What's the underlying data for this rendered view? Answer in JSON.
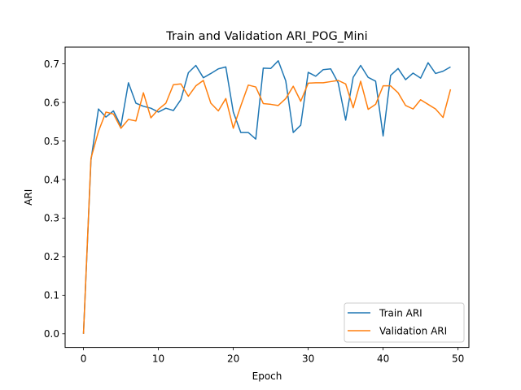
{
  "chart_data": {
    "type": "line",
    "title": "Train and Validation ARI_POG_Mini",
    "xlabel": "Epoch",
    "ylabel": "ARI",
    "xlim": [
      -2.45,
      51.45
    ],
    "ylim": [
      -0.0354,
      0.7434
    ],
    "xticks": [
      0,
      10,
      20,
      30,
      40,
      50
    ],
    "yticks": [
      0.0,
      0.1,
      0.2,
      0.3,
      0.4,
      0.5,
      0.6,
      0.7
    ],
    "xtick_labels": [
      "0",
      "10",
      "20",
      "30",
      "40",
      "50"
    ],
    "ytick_labels": [
      "0.0",
      "0.1",
      "0.2",
      "0.3",
      "0.4",
      "0.5",
      "0.6",
      "0.7"
    ],
    "grid": false,
    "legend_position": "lower-right",
    "x": [
      0,
      1,
      2,
      3,
      4,
      5,
      6,
      7,
      8,
      9,
      10,
      11,
      12,
      13,
      14,
      15,
      16,
      17,
      18,
      19,
      20,
      21,
      22,
      23,
      24,
      25,
      26,
      27,
      28,
      29,
      30,
      31,
      32,
      33,
      34,
      35,
      36,
      37,
      38,
      39,
      40,
      41,
      42,
      43,
      44,
      45,
      46,
      47,
      48,
      49
    ],
    "series": [
      {
        "name": "Train ARI",
        "color": "#1f77b4",
        "values": [
          0.0,
          0.45,
          0.583,
          0.562,
          0.578,
          0.539,
          0.651,
          0.598,
          0.59,
          0.585,
          0.575,
          0.585,
          0.579,
          0.607,
          0.677,
          0.696,
          0.664,
          0.675,
          0.687,
          0.692,
          0.575,
          0.522,
          0.522,
          0.505,
          0.689,
          0.688,
          0.708,
          0.656,
          0.522,
          0.541,
          0.678,
          0.668,
          0.685,
          0.687,
          0.651,
          0.554,
          0.665,
          0.696,
          0.665,
          0.655,
          0.513,
          0.67,
          0.688,
          0.659,
          0.676,
          0.663,
          0.703,
          0.675,
          0.681,
          0.692
        ]
      },
      {
        "name": "Validation ARI",
        "color": "#ff7f0e",
        "values": [
          0.0,
          0.455,
          0.525,
          0.575,
          0.57,
          0.533,
          0.556,
          0.552,
          0.625,
          0.56,
          0.582,
          0.598,
          0.646,
          0.648,
          0.616,
          0.643,
          0.657,
          0.598,
          0.578,
          0.61,
          0.533,
          0.591,
          0.645,
          0.64,
          0.597,
          0.595,
          0.592,
          0.61,
          0.642,
          0.603,
          0.65,
          0.651,
          0.651,
          0.654,
          0.657,
          0.648,
          0.586,
          0.655,
          0.582,
          0.595,
          0.643,
          0.643,
          0.625,
          0.592,
          0.583,
          0.607,
          0.595,
          0.583,
          0.561,
          0.634
        ]
      }
    ]
  }
}
